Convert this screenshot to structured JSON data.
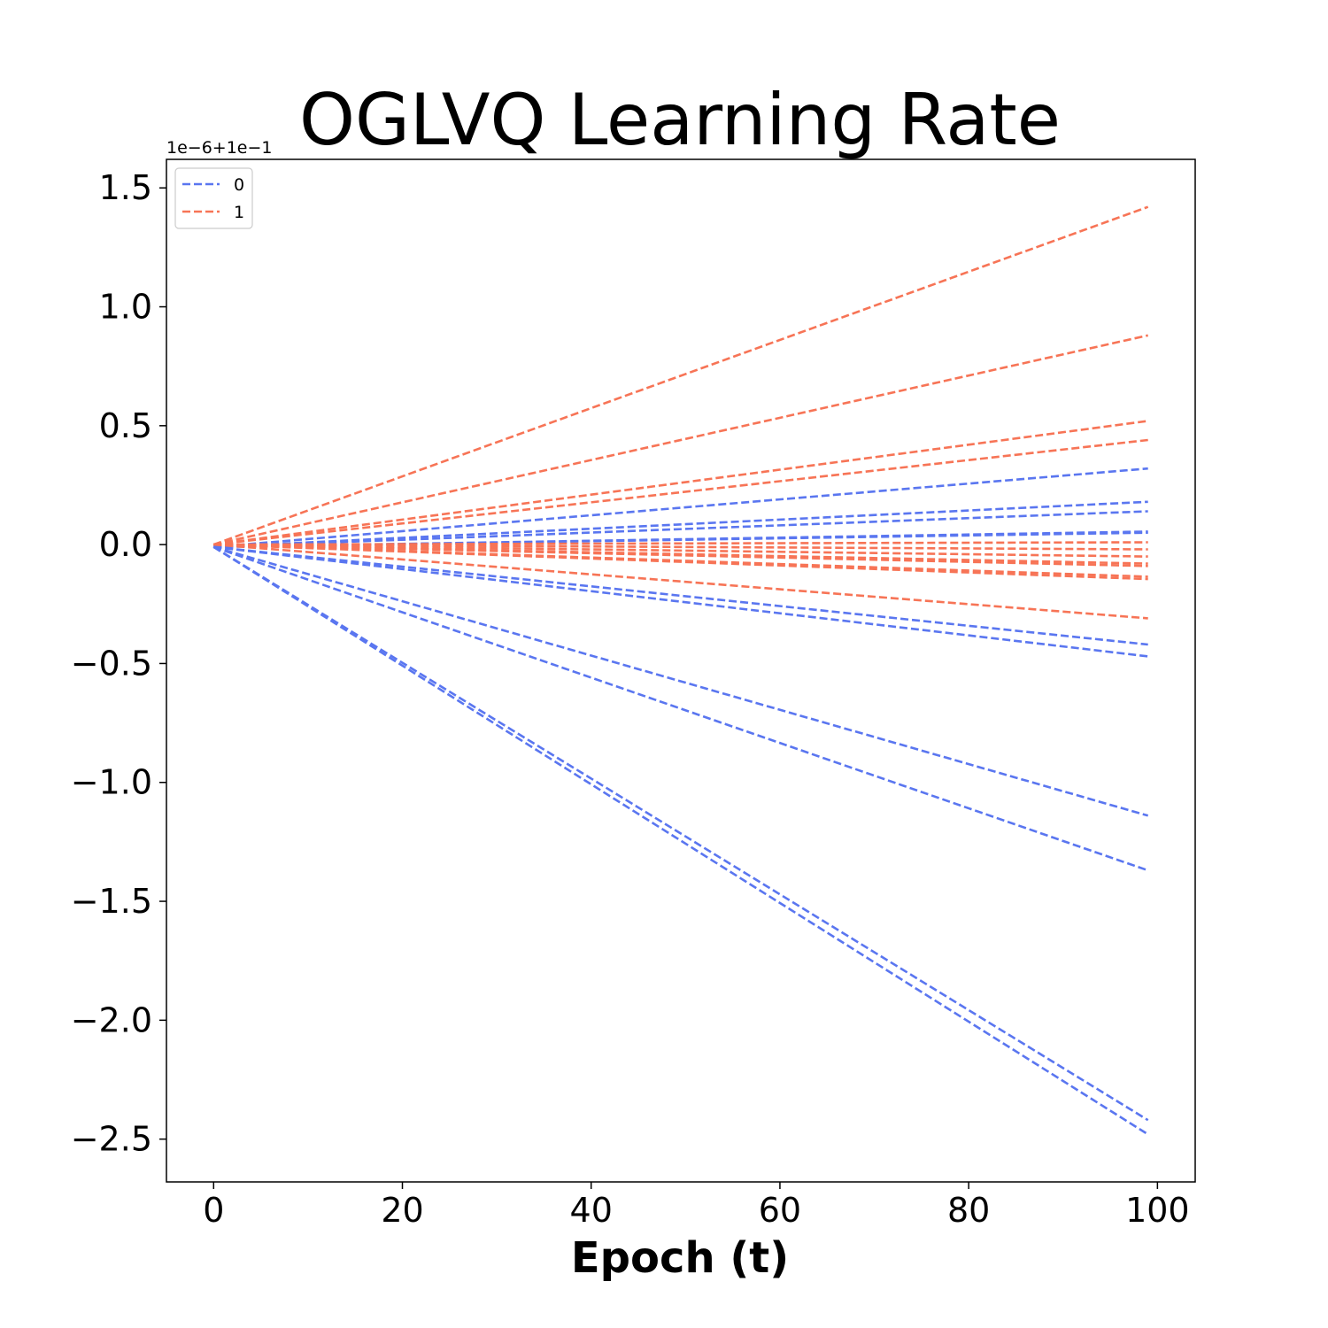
{
  "chart_data": {
    "type": "line",
    "title": "OGLVQ Learning Rate",
    "xlabel": "Epoch (t)",
    "ylabel": "",
    "offset_label": "1e−6+1e−1",
    "xlim": [
      -5,
      104
    ],
    "ylim": [
      -2.68,
      1.62
    ],
    "x_ticks": [
      0,
      20,
      40,
      60,
      80,
      100
    ],
    "x_tick_labels": [
      "0",
      "20",
      "40",
      "60",
      "80",
      "100"
    ],
    "y_ticks": [
      1.5,
      1.0,
      0.5,
      0.0,
      -0.5,
      -1.0,
      -1.5,
      -2.0,
      -2.5
    ],
    "y_tick_labels": [
      "1.5",
      "1.0",
      "0.5",
      "0.0",
      "−0.5",
      "−1.0",
      "−1.5",
      "−2.0",
      "−2.5"
    ],
    "grid": false,
    "legend_placement": "top-left",
    "line_style": "dashed",
    "legend": [
      {
        "label": "0",
        "color": "#5a76f0"
      },
      {
        "label": "1",
        "color": "#f77456"
      }
    ],
    "series": [
      {
        "name": "0",
        "color": "#5a76f0",
        "x": [
          0,
          99
        ],
        "y": [
          -0.01,
          0.32
        ]
      },
      {
        "name": "0",
        "color": "#5a76f0",
        "x": [
          0,
          99
        ],
        "y": [
          -0.01,
          0.18
        ]
      },
      {
        "name": "0",
        "color": "#5a76f0",
        "x": [
          0,
          99
        ],
        "y": [
          -0.01,
          0.14
        ]
      },
      {
        "name": "0",
        "color": "#5a76f0",
        "x": [
          0,
          99
        ],
        "y": [
          -0.01,
          0.055
        ]
      },
      {
        "name": "0",
        "color": "#5a76f0",
        "x": [
          0,
          99
        ],
        "y": [
          -0.01,
          0.05
        ]
      },
      {
        "name": "0",
        "color": "#5a76f0",
        "x": [
          0,
          99
        ],
        "y": [
          -0.01,
          -0.42
        ]
      },
      {
        "name": "0",
        "color": "#5a76f0",
        "x": [
          0,
          99
        ],
        "y": [
          -0.01,
          -0.47
        ]
      },
      {
        "name": "0",
        "color": "#5a76f0",
        "x": [
          0,
          99
        ],
        "y": [
          -0.01,
          -1.14
        ]
      },
      {
        "name": "0",
        "color": "#5a76f0",
        "x": [
          0,
          99
        ],
        "y": [
          -0.01,
          -1.37
        ]
      },
      {
        "name": "0",
        "color": "#5a76f0",
        "x": [
          0,
          99
        ],
        "y": [
          -0.01,
          -2.42
        ]
      },
      {
        "name": "0",
        "color": "#5a76f0",
        "x": [
          0,
          99
        ],
        "y": [
          -0.01,
          -2.48
        ]
      },
      {
        "name": "1",
        "color": "#f77456",
        "x": [
          0,
          99
        ],
        "y": [
          0.0,
          1.42
        ]
      },
      {
        "name": "1",
        "color": "#f77456",
        "x": [
          0,
          99
        ],
        "y": [
          0.0,
          0.88
        ]
      },
      {
        "name": "1",
        "color": "#f77456",
        "x": [
          0,
          99
        ],
        "y": [
          0.0,
          0.52
        ]
      },
      {
        "name": "1",
        "color": "#f77456",
        "x": [
          0,
          99
        ],
        "y": [
          0.0,
          0.44
        ]
      },
      {
        "name": "1",
        "color": "#f77456",
        "x": [
          0,
          99
        ],
        "y": [
          0.0,
          0.01
        ]
      },
      {
        "name": "1",
        "color": "#f77456",
        "x": [
          0,
          99
        ],
        "y": [
          0.0,
          -0.02
        ]
      },
      {
        "name": "1",
        "color": "#f77456",
        "x": [
          0,
          99
        ],
        "y": [
          0.0,
          -0.05
        ]
      },
      {
        "name": "1",
        "color": "#f77456",
        "x": [
          0,
          99
        ],
        "y": [
          0.0,
          -0.08
        ]
      },
      {
        "name": "1",
        "color": "#f77456",
        "x": [
          0,
          99
        ],
        "y": [
          0.0,
          -0.09
        ]
      },
      {
        "name": "1",
        "color": "#f77456",
        "x": [
          0,
          99
        ],
        "y": [
          0.0,
          -0.135
        ]
      },
      {
        "name": "1",
        "color": "#f77456",
        "x": [
          0,
          99
        ],
        "y": [
          0.0,
          -0.145
        ]
      },
      {
        "name": "1",
        "color": "#f77456",
        "x": [
          0,
          99
        ],
        "y": [
          0.0,
          -0.31
        ]
      }
    ]
  }
}
